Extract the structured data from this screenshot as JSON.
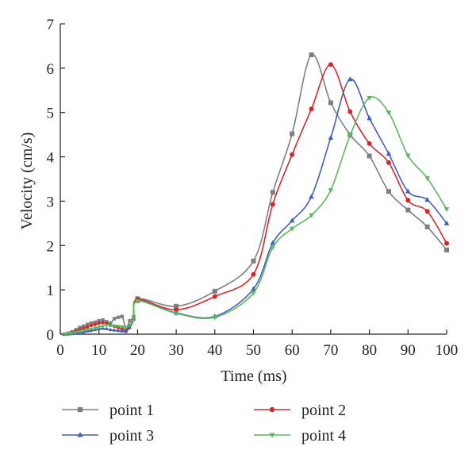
{
  "chart_data": {
    "type": "line",
    "title": "",
    "xlabel": "Time (ms)",
    "ylabel": "Velocity (cm/s)",
    "xlim": [
      0,
      100
    ],
    "ylim": [
      0,
      7
    ],
    "xticks": [
      0,
      10,
      20,
      30,
      40,
      50,
      60,
      70,
      80,
      90,
      100
    ],
    "yticks": [
      0,
      1,
      2,
      3,
      4,
      5,
      6,
      7
    ],
    "grid": false,
    "legend_position": "bottom",
    "series": [
      {
        "name": "point 1",
        "color": "#7f7f7f",
        "marker": "square",
        "x": [
          1,
          2,
          3,
          4,
          5,
          6,
          7,
          8,
          9,
          10,
          11,
          12,
          13,
          14,
          15,
          16,
          17,
          18,
          19,
          20,
          30,
          40,
          50,
          55,
          60,
          65,
          70,
          75,
          80,
          85,
          90,
          95,
          100
        ],
        "y": [
          0,
          0.02,
          0.05,
          0.1,
          0.15,
          0.18,
          0.22,
          0.25,
          0.27,
          0.3,
          0.32,
          0.28,
          0.25,
          0.35,
          0.38,
          0.4,
          0.15,
          0.3,
          0.4,
          0.8,
          0.63,
          0.97,
          1.65,
          3.2,
          4.52,
          6.3,
          5.22,
          4.5,
          4.02,
          3.22,
          2.8,
          2.42,
          1.9
        ]
      },
      {
        "name": "point 2",
        "color": "#d62728",
        "marker": "circle",
        "x": [
          1,
          2,
          3,
          4,
          5,
          6,
          7,
          8,
          9,
          10,
          11,
          12,
          13,
          14,
          15,
          16,
          17,
          18,
          19,
          20,
          30,
          40,
          50,
          55,
          60,
          65,
          70,
          75,
          80,
          85,
          90,
          95,
          100
        ],
        "y": [
          0,
          0.01,
          0.03,
          0.06,
          0.1,
          0.13,
          0.16,
          0.2,
          0.22,
          0.25,
          0.26,
          0.24,
          0.2,
          0.18,
          0.15,
          0.12,
          0.08,
          0.2,
          0.35,
          0.78,
          0.55,
          0.85,
          1.35,
          2.93,
          4.05,
          5.08,
          6.08,
          5.02,
          4.3,
          3.87,
          3.02,
          2.77,
          2.05
        ]
      },
      {
        "name": "point 3",
        "color": "#3f5fbf",
        "marker": "triangle-up",
        "x": [
          1,
          2,
          3,
          4,
          5,
          6,
          7,
          8,
          9,
          10,
          11,
          12,
          13,
          14,
          15,
          16,
          17,
          18,
          19,
          20,
          30,
          40,
          50,
          55,
          60,
          65,
          70,
          75,
          80,
          85,
          90,
          95,
          100
        ],
        "y": [
          0,
          0,
          0.01,
          0.02,
          0.03,
          0.05,
          0.07,
          0.08,
          0.1,
          0.12,
          0.13,
          0.12,
          0.1,
          0.09,
          0.08,
          0.07,
          0.06,
          0.15,
          0.33,
          0.75,
          0.48,
          0.4,
          1.02,
          2.06,
          2.56,
          3.1,
          4.43,
          5.75,
          4.87,
          4.07,
          3.22,
          3.03,
          2.5
        ]
      },
      {
        "name": "point 4",
        "color": "#5cb85c",
        "marker": "triangle-down",
        "x": [
          1,
          2,
          3,
          4,
          5,
          6,
          7,
          8,
          9,
          10,
          11,
          12,
          13,
          14,
          15,
          16,
          17,
          18,
          19,
          20,
          30,
          40,
          50,
          55,
          60,
          65,
          70,
          75,
          80,
          85,
          90,
          95,
          100
        ],
        "y": [
          0,
          0.01,
          0.02,
          0.04,
          0.06,
          0.08,
          0.1,
          0.12,
          0.14,
          0.16,
          0.18,
          0.2,
          0.2,
          0.19,
          0.18,
          0.17,
          0.15,
          0.2,
          0.35,
          0.75,
          0.47,
          0.38,
          0.93,
          1.96,
          2.38,
          2.68,
          3.25,
          4.48,
          5.33,
          5.0,
          4.03,
          3.52,
          2.82
        ]
      }
    ]
  }
}
